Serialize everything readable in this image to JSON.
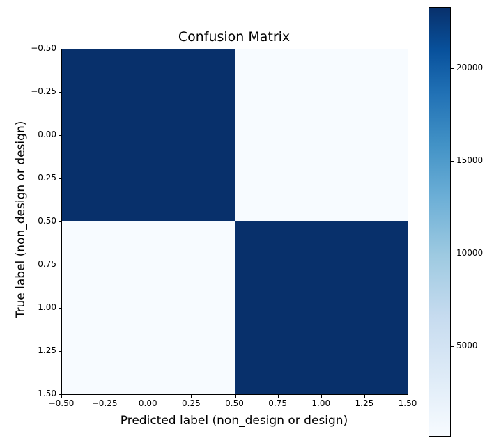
{
  "chart_data": {
    "type": "heatmap",
    "title": "Confusion Matrix",
    "xlabel": "Predicted label (non_design or design)",
    "ylabel": "True label (non_design or design)",
    "x_ticks": [
      "−0.50",
      "−0.25",
      "0.00",
      "0.25",
      "0.50",
      "0.75",
      "1.00",
      "1.25",
      "1.50"
    ],
    "y_ticks": [
      "−0.50",
      "−0.25",
      "0.00",
      "0.25",
      "0.50",
      "0.75",
      "1.00",
      "1.25",
      "1.50"
    ],
    "xlim": [
      -0.5,
      1.5
    ],
    "ylim": [
      1.5,
      -0.5
    ],
    "matrix": [
      [
        23300,
        100
      ],
      [
        100,
        23300
      ]
    ],
    "colormap": "Blues",
    "colorbar": {
      "ticks": [
        "5000",
        "10000",
        "15000",
        "20000"
      ],
      "range": [
        100,
        23300
      ]
    },
    "grid": false
  },
  "colors": {
    "high": "#08306b",
    "low": "#f7fbff"
  }
}
